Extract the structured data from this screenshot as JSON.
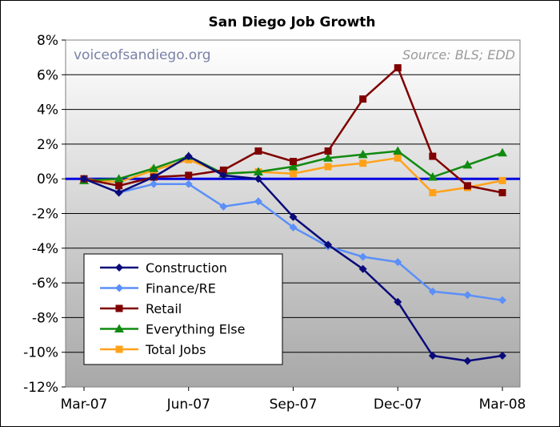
{
  "chart_data": {
    "type": "line",
    "title": "San Diego Job Growth",
    "watermark": "voiceofsandiego.org",
    "source": "Source: BLS; EDD",
    "xlabel": "",
    "ylabel": "",
    "x_ticks": [
      "Mar-07",
      "Jun-07",
      "Sep-07",
      "Dec-07",
      "Mar-08"
    ],
    "y_ticks": [
      "8%",
      "6%",
      "4%",
      "2%",
      "0%",
      "-2%",
      "-4%",
      "-6%",
      "-8%",
      "-10%",
      "-12%"
    ],
    "ylim": [
      -12,
      8
    ],
    "x": [
      0,
      1,
      2,
      3,
      4,
      5,
      6,
      7,
      8,
      9,
      10,
      11,
      12
    ],
    "x_tick_positions": [
      0,
      3,
      6,
      9,
      12
    ],
    "legend_location": "bottom-left",
    "series": [
      {
        "name": "Construction",
        "color": "#0a0a7a",
        "marker": "diamond",
        "values": [
          0.0,
          -0.8,
          0.1,
          1.3,
          0.2,
          0.0,
          -2.2,
          -3.8,
          -5.2,
          -7.1,
          -10.2,
          -10.5,
          -10.2
        ]
      },
      {
        "name": "Finance/RE",
        "color": "#5b8ff9",
        "marker": "diamond",
        "values": [
          0.0,
          -0.8,
          -0.3,
          -0.3,
          -1.6,
          -1.3,
          -2.8,
          -3.9,
          -4.5,
          -4.8,
          -6.5,
          -6.7,
          -7.0
        ]
      },
      {
        "name": "Retail",
        "color": "#800000",
        "marker": "square",
        "values": [
          0.0,
          -0.4,
          0.1,
          0.2,
          0.5,
          1.6,
          1.0,
          1.6,
          4.6,
          6.4,
          1.3,
          -0.4,
          -0.8
        ]
      },
      {
        "name": "Everything Else",
        "color": "#118a11",
        "marker": "triangle",
        "values": [
          -0.1,
          0.0,
          0.6,
          1.3,
          0.3,
          0.4,
          0.7,
          1.2,
          1.4,
          1.6,
          0.1,
          0.8,
          1.5
        ]
      },
      {
        "name": "Total Jobs",
        "color": "#ffa21a",
        "marker": "square",
        "values": [
          0.0,
          -0.2,
          0.5,
          1.1,
          0.3,
          0.4,
          0.3,
          0.7,
          0.9,
          1.2,
          -0.8,
          -0.5,
          -0.1
        ]
      }
    ],
    "zero_line_color": "#0000e0",
    "plot_bg": "#c0c0c0"
  }
}
